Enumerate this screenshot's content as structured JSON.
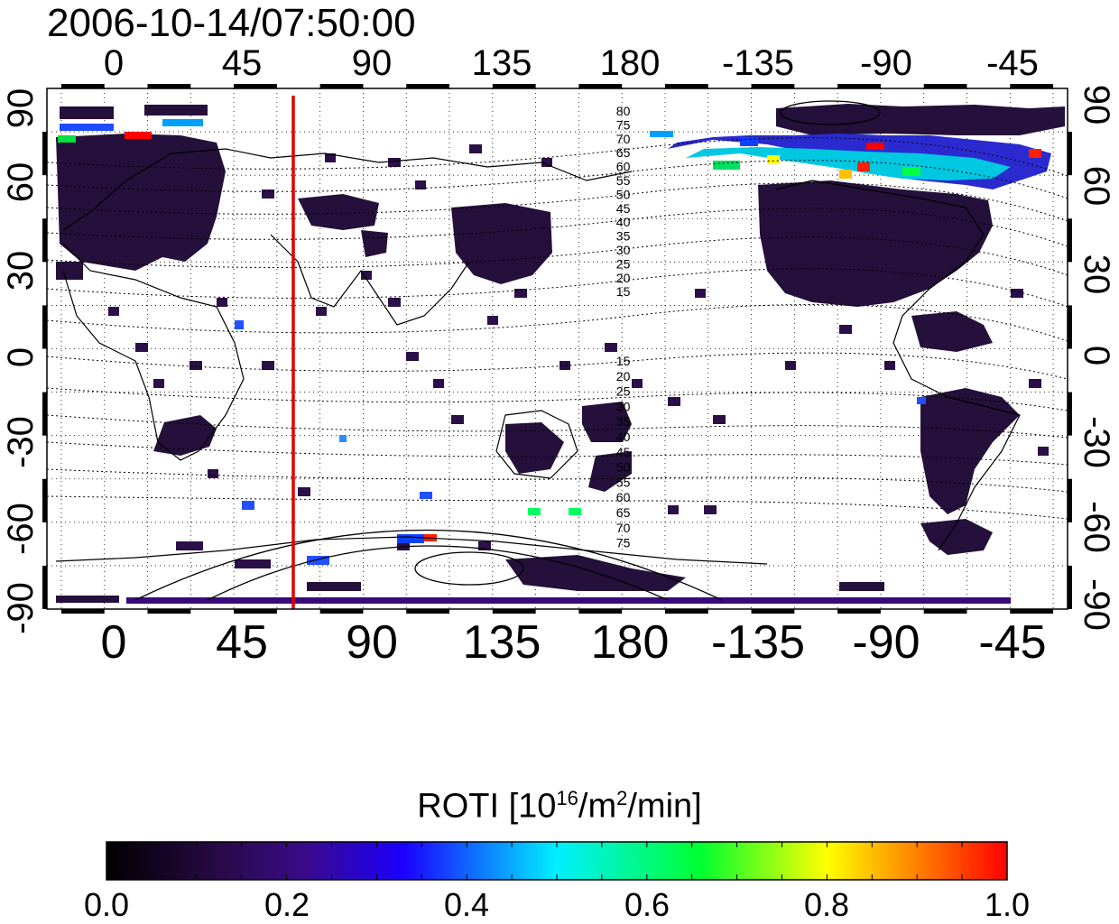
{
  "title": "2006-10-14/07:50:00",
  "map": {
    "lon_ticks_top": [
      "0",
      "45",
      "90",
      "135",
      "180",
      "-135",
      "-90",
      "-45"
    ],
    "lon_ticks_bottom": [
      "0",
      "45",
      "90",
      "135",
      "180",
      "-135",
      "-90",
      "-45"
    ],
    "lat_ticks_left": [
      "90",
      "60",
      "30",
      "0",
      "-30",
      "-60",
      "-90"
    ],
    "lat_ticks_right": [
      "90",
      "60",
      "30",
      "0",
      "-30",
      "-60",
      "-90"
    ],
    "lon_range": [
      -20,
      335
    ],
    "lat_range": [
      -90,
      90
    ],
    "grid": "dotted every 15 degrees",
    "terminator_line_longitude": 63,
    "terminator_color": "#e00000",
    "contour_labels_north": [
      "80",
      "75",
      "70",
      "65",
      "60",
      "55",
      "50",
      "45",
      "40",
      "35",
      "30",
      "25",
      "20",
      "15"
    ],
    "contour_labels_south": [
      "15",
      "20",
      "25",
      "30",
      "35",
      "40",
      "45",
      "50",
      "55",
      "60",
      "65",
      "70",
      "75"
    ]
  },
  "colorbar": {
    "title_prefix": "ROTI  [10",
    "title_sup1": "16",
    "title_mid": "/m",
    "title_sup2": "2",
    "title_suffix": "/min]",
    "ticks": [
      "0.0",
      "0.2",
      "0.4",
      "0.6",
      "0.8",
      "1.0"
    ],
    "range": [
      0.0,
      1.0
    ],
    "colors": [
      "#000000",
      "#3a0a6a",
      "#2000ff",
      "#00e0ff",
      "#00ff40",
      "#ffff00",
      "#ff8000",
      "#ff0000"
    ]
  }
}
